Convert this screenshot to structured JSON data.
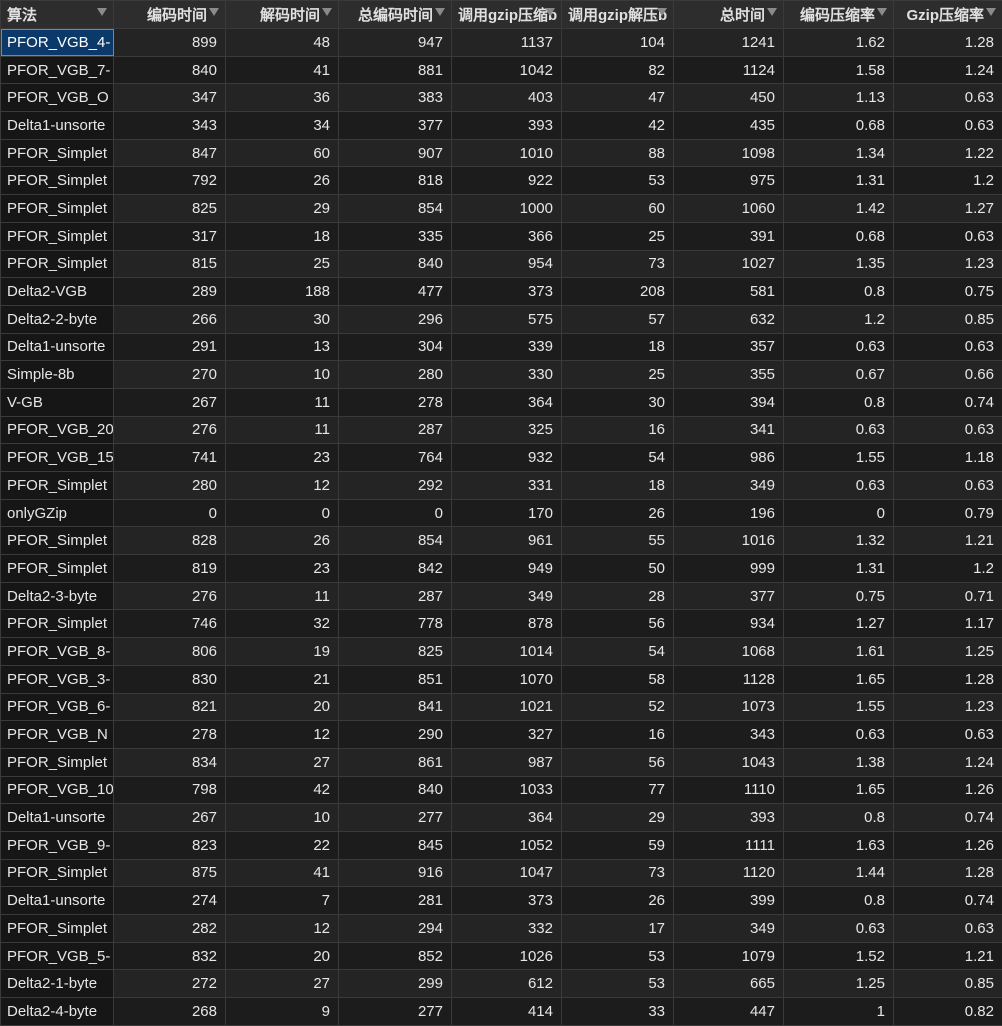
{
  "columns": [
    {
      "label": "算法"
    },
    {
      "label": "编码时间"
    },
    {
      "label": "解码时间"
    },
    {
      "label": "总编码时间"
    },
    {
      "label": "调用gzip压缩b"
    },
    {
      "label": "调用gzip解压b"
    },
    {
      "label": "总时间"
    },
    {
      "label": "编码压缩率"
    },
    {
      "label": "Gzip压缩率"
    }
  ],
  "rows": [
    [
      "PFOR_VGB_4-",
      "899",
      "48",
      "947",
      "1137",
      "104",
      "1241",
      "1.62",
      "1.28"
    ],
    [
      "PFOR_VGB_7-",
      "840",
      "41",
      "881",
      "1042",
      "82",
      "1124",
      "1.58",
      "1.24"
    ],
    [
      "PFOR_VGB_O",
      "347",
      "36",
      "383",
      "403",
      "47",
      "450",
      "1.13",
      "0.63"
    ],
    [
      "Delta1-unsorte",
      "343",
      "34",
      "377",
      "393",
      "42",
      "435",
      "0.68",
      "0.63"
    ],
    [
      "PFOR_Simplet",
      "847",
      "60",
      "907",
      "1010",
      "88",
      "1098",
      "1.34",
      "1.22"
    ],
    [
      "PFOR_Simplet",
      "792",
      "26",
      "818",
      "922",
      "53",
      "975",
      "1.31",
      "1.2"
    ],
    [
      "PFOR_Simplet",
      "825",
      "29",
      "854",
      "1000",
      "60",
      "1060",
      "1.42",
      "1.27"
    ],
    [
      "PFOR_Simplet",
      "317",
      "18",
      "335",
      "366",
      "25",
      "391",
      "0.68",
      "0.63"
    ],
    [
      "PFOR_Simplet",
      "815",
      "25",
      "840",
      "954",
      "73",
      "1027",
      "1.35",
      "1.23"
    ],
    [
      "Delta2-VGB",
      "289",
      "188",
      "477",
      "373",
      "208",
      "581",
      "0.8",
      "0.75"
    ],
    [
      "Delta2-2-byte",
      "266",
      "30",
      "296",
      "575",
      "57",
      "632",
      "1.2",
      "0.85"
    ],
    [
      "Delta1-unsorte",
      "291",
      "13",
      "304",
      "339",
      "18",
      "357",
      "0.63",
      "0.63"
    ],
    [
      "Simple-8b",
      "270",
      "10",
      "280",
      "330",
      "25",
      "355",
      "0.67",
      "0.66"
    ],
    [
      "V-GB",
      "267",
      "11",
      "278",
      "364",
      "30",
      "394",
      "0.8",
      "0.74"
    ],
    [
      "PFOR_VGB_20",
      "276",
      "11",
      "287",
      "325",
      "16",
      "341",
      "0.63",
      "0.63"
    ],
    [
      "PFOR_VGB_15",
      "741",
      "23",
      "764",
      "932",
      "54",
      "986",
      "1.55",
      "1.18"
    ],
    [
      "PFOR_Simplet",
      "280",
      "12",
      "292",
      "331",
      "18",
      "349",
      "0.63",
      "0.63"
    ],
    [
      "onlyGZip",
      "0",
      "0",
      "0",
      "170",
      "26",
      "196",
      "0",
      "0.79"
    ],
    [
      "PFOR_Simplet",
      "828",
      "26",
      "854",
      "961",
      "55",
      "1016",
      "1.32",
      "1.21"
    ],
    [
      "PFOR_Simplet",
      "819",
      "23",
      "842",
      "949",
      "50",
      "999",
      "1.31",
      "1.2"
    ],
    [
      "Delta2-3-byte",
      "276",
      "11",
      "287",
      "349",
      "28",
      "377",
      "0.75",
      "0.71"
    ],
    [
      "PFOR_Simplet",
      "746",
      "32",
      "778",
      "878",
      "56",
      "934",
      "1.27",
      "1.17"
    ],
    [
      "PFOR_VGB_8-",
      "806",
      "19",
      "825",
      "1014",
      "54",
      "1068",
      "1.61",
      "1.25"
    ],
    [
      "PFOR_VGB_3-",
      "830",
      "21",
      "851",
      "1070",
      "58",
      "1128",
      "1.65",
      "1.28"
    ],
    [
      "PFOR_VGB_6-",
      "821",
      "20",
      "841",
      "1021",
      "52",
      "1073",
      "1.55",
      "1.23"
    ],
    [
      "PFOR_VGB_N",
      "278",
      "12",
      "290",
      "327",
      "16",
      "343",
      "0.63",
      "0.63"
    ],
    [
      "PFOR_Simplet",
      "834",
      "27",
      "861",
      "987",
      "56",
      "1043",
      "1.38",
      "1.24"
    ],
    [
      "PFOR_VGB_10",
      "798",
      "42",
      "840",
      "1033",
      "77",
      "1110",
      "1.65",
      "1.26"
    ],
    [
      "Delta1-unsorte",
      "267",
      "10",
      "277",
      "364",
      "29",
      "393",
      "0.8",
      "0.74"
    ],
    [
      "PFOR_VGB_9-",
      "823",
      "22",
      "845",
      "1052",
      "59",
      "1111",
      "1.63",
      "1.26"
    ],
    [
      "PFOR_Simplet",
      "875",
      "41",
      "916",
      "1047",
      "73",
      "1120",
      "1.44",
      "1.28"
    ],
    [
      "Delta1-unsorte",
      "274",
      "7",
      "281",
      "373",
      "26",
      "399",
      "0.8",
      "0.74"
    ],
    [
      "PFOR_Simplet",
      "282",
      "12",
      "294",
      "332",
      "17",
      "349",
      "0.63",
      "0.63"
    ],
    [
      "PFOR_VGB_5-",
      "832",
      "20",
      "852",
      "1026",
      "53",
      "1079",
      "1.52",
      "1.21"
    ],
    [
      "Delta2-1-byte",
      "272",
      "27",
      "299",
      "612",
      "53",
      "665",
      "1.25",
      "0.85"
    ],
    [
      "Delta2-4-byte",
      "268",
      "9",
      "277",
      "414",
      "33",
      "447",
      "1",
      "0.82"
    ]
  ],
  "selected_row": 0,
  "colors": {
    "background": "#1e1e1e",
    "header": "#2d2d2d",
    "selection": "#0b3a6a",
    "grid_line": "#3a3a3a"
  }
}
